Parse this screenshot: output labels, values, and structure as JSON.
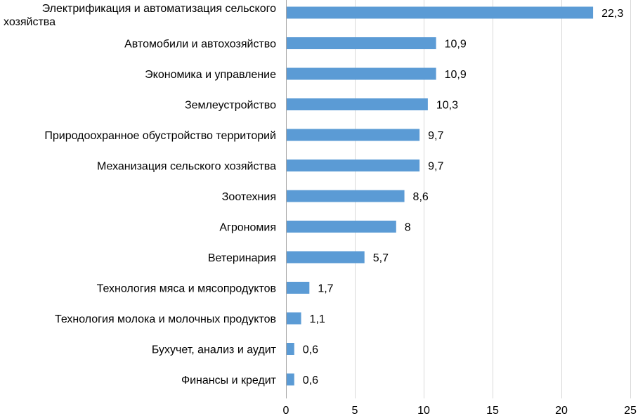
{
  "chart_data": {
    "type": "bar",
    "orientation": "horizontal",
    "categories": [
      "Электрификация и автоматизация сельского хозяйства",
      "Автомобили и автохозяйство",
      "Экономика и управление",
      "Землеустройство",
      "Природоохранное обустройство территорий",
      "Механизация сельского хозяйства",
      "Зоотехния",
      "Агрономия",
      "Ветеринария",
      "Технология мяса и мясопродуктов",
      "Технология молока и молочных продуктов",
      "Бухучет, анализ и аудит",
      "Финансы и кредит"
    ],
    "category_lines": [
      [
        "Электрификация и автоматизация сельского",
        "хозяйства"
      ],
      [
        "Автомобили и автохозяйство"
      ],
      [
        "Экономика и управление"
      ],
      [
        "Землеустройство"
      ],
      [
        "Природоохранное обустройство территорий"
      ],
      [
        "Механизация сельского хозяйства"
      ],
      [
        "Зоотехния"
      ],
      [
        "Агрономия"
      ],
      [
        "Ветеринария"
      ],
      [
        "Технология мяса и мясопродуктов"
      ],
      [
        "Технология молока и молочных продуктов"
      ],
      [
        "Бухучет, анализ и аудит"
      ],
      [
        "Финансы и кредит"
      ]
    ],
    "values": [
      22.3,
      10.9,
      10.9,
      10.3,
      9.7,
      9.7,
      8.6,
      8,
      5.7,
      1.7,
      1.1,
      0.6,
      0.6
    ],
    "value_labels": [
      "22,3",
      "10,9",
      "10,9",
      "10,3",
      "9,7",
      "9,7",
      "8,6",
      "8",
      "5,7",
      "1,7",
      "1,1",
      "0,6",
      "0,6"
    ],
    "x_ticks": [
      0,
      5,
      10,
      15,
      20,
      25
    ],
    "x_tick_labels": [
      "0",
      "5",
      "10",
      "15",
      "20",
      "25"
    ],
    "xlim": [
      0,
      25
    ],
    "grid": "vertical",
    "legend": "none",
    "bar_color": "#5b9bd5",
    "title": "",
    "xlabel": "",
    "ylabel": ""
  }
}
